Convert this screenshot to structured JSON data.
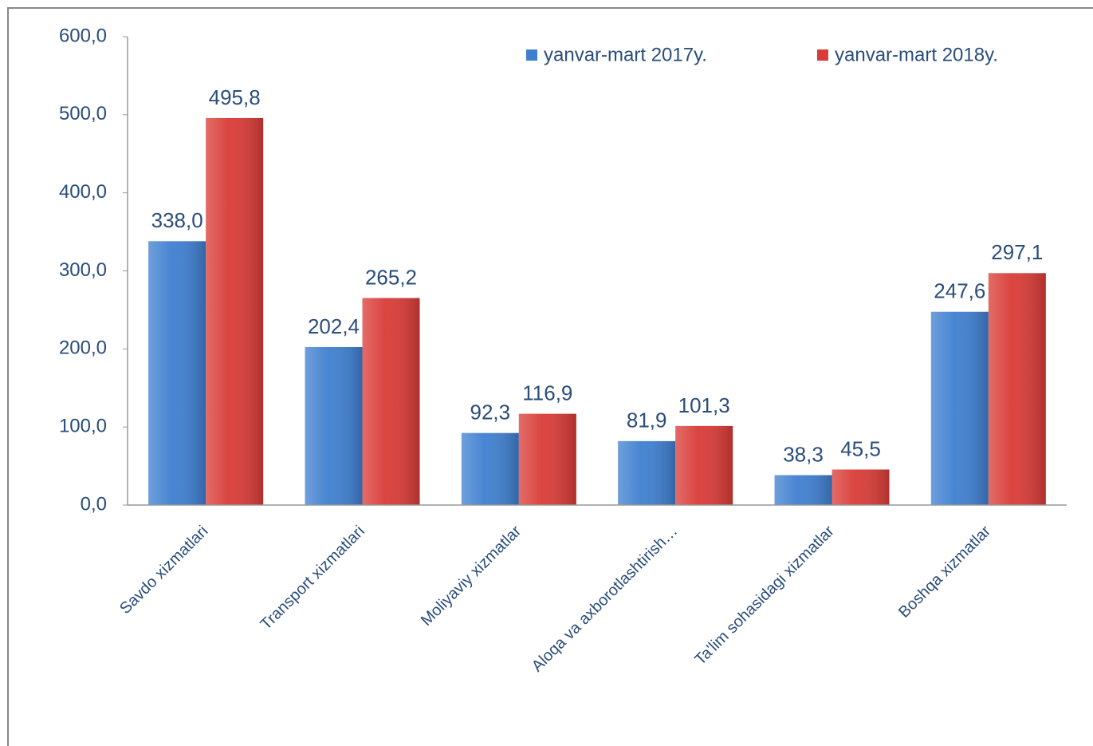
{
  "chart_data": {
    "type": "bar",
    "categories": [
      "Savdo xizmatlari",
      "Transport xizmatlari",
      "Moliyaviy xizmatlar",
      "Aloqa va axborotlashtirish…",
      "Ta'lim sohasidagi xizmatlar",
      "Boshqa xizmatlar"
    ],
    "series": [
      {
        "name": "yanvar-mart 2017y.",
        "color": "#3f7fd0",
        "values": [
          338.0,
          202.4,
          92.3,
          81.9,
          38.3,
          247.6
        ],
        "value_labels": [
          "338,0",
          "202,4",
          "92,3",
          "81,9",
          "38,3",
          "247,6"
        ]
      },
      {
        "name": "yanvar-mart 2018y.",
        "color": "#d93b36",
        "values": [
          495.8,
          265.2,
          116.9,
          101.3,
          45.5,
          297.1
        ],
        "value_labels": [
          "495,8",
          "265,2",
          "116,9",
          "101,3",
          "45,5",
          "297,1"
        ]
      }
    ],
    "ylim": [
      0,
      600
    ],
    "yticks": [
      {
        "value": 0,
        "label": "0,0"
      },
      {
        "value": 100,
        "label": "100,0"
      },
      {
        "value": 200,
        "label": "200,0"
      },
      {
        "value": 300,
        "label": "300,0"
      },
      {
        "value": 400,
        "label": "400,0"
      },
      {
        "value": 500,
        "label": "500,0"
      },
      {
        "value": 600,
        "label": "600,0"
      }
    ],
    "grid": false,
    "legend": "top-right"
  }
}
